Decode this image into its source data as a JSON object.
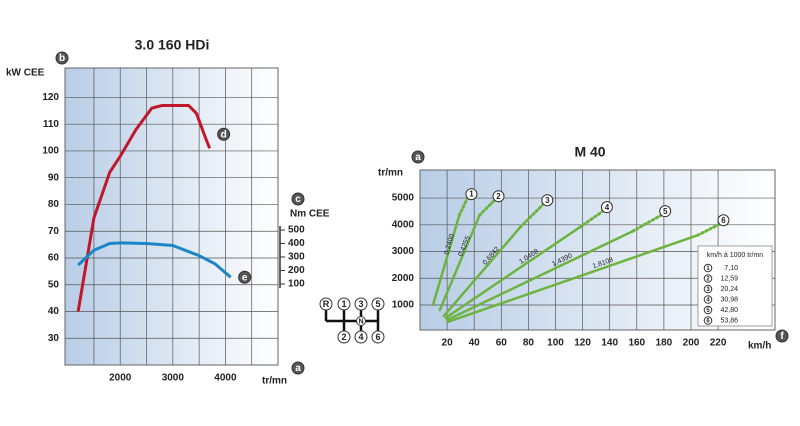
{
  "chart_data": [
    {
      "type": "line",
      "title": "3.0  160 HDi",
      "ylabel": "kW CEE",
      "y2label": "Nm CEE",
      "xlabel": "tr/mn",
      "markers": [
        "b",
        "c",
        "a"
      ],
      "xlim": [
        950,
        5000
      ],
      "xticks": [
        2000,
        3000,
        4000
      ],
      "xgrid": [
        1500,
        2000,
        2500,
        3000,
        3500,
        4000,
        4500
      ],
      "ylim": [
        20,
        131
      ],
      "yticks": [
        30,
        40,
        50,
        60,
        70,
        80,
        90,
        100,
        110,
        120
      ],
      "y2lim": [
        -500,
        1700
      ],
      "y2ticks": [
        100,
        200,
        300,
        400,
        500
      ],
      "series": [
        {
          "name": "d",
          "color": "#c0182a",
          "x": [
            1200,
            1500,
            1800,
            2000,
            2300,
            2600,
            2800,
            3300,
            3450,
            3600,
            3700
          ],
          "values": [
            40,
            75,
            92,
            98,
            108,
            116,
            117,
            117,
            114,
            106,
            101
          ]
        },
        {
          "name": "e",
          "color": "#1a86c8",
          "axis": "y2",
          "x": [
            1200,
            1500,
            1800,
            2000,
            2500,
            3000,
            3500,
            3800,
            4100
          ],
          "values": [
            240,
            350,
            400,
            405,
            400,
            385,
            310,
            250,
            150
          ]
        }
      ]
    },
    {
      "type": "line",
      "title": "M 40",
      "ylabel": "tr/mn",
      "xlabel": "km/h",
      "markers": [
        "a",
        "f"
      ],
      "xlim": [
        0,
        262
      ],
      "xticks": [
        20,
        40,
        60,
        80,
        100,
        120,
        140,
        160,
        180,
        200,
        220
      ],
      "ylim": [
        65,
        6050
      ],
      "yticks": [
        1000,
        2000,
        3000,
        4000,
        5000
      ],
      "series": [
        {
          "name": "1",
          "label": "0,2400",
          "color": "#6db33f",
          "x": [
            9.6,
            29,
            35
          ],
          "values": [
            1000,
            4360,
            5000
          ]
        },
        {
          "name": "2",
          "label": "0,4255",
          "color": "#6db33f",
          "x": [
            14.6,
            44,
            55
          ],
          "values": [
            810,
            4360,
            4920
          ]
        },
        {
          "name": "3",
          "label": "0,6842",
          "color": "#6db33f",
          "x": [
            17.6,
            74,
            91
          ],
          "values": [
            590,
            3910,
            4770
          ]
        },
        {
          "name": "4",
          "label": "1,0468",
          "color": "#6db33f",
          "x": [
            19,
            118,
            135
          ],
          "values": [
            520,
            3910,
            4510
          ]
        },
        {
          "name": "5",
          "label": "1,4390",
          "color": "#6db33f",
          "x": [
            20,
            157,
            178
          ],
          "values": [
            440,
            3760,
            4360
          ]
        },
        {
          "name": "6",
          "label": "1,8108",
          "color": "#6db33f",
          "x": [
            20.7,
            205,
            221
          ],
          "values": [
            370,
            3610,
            4020
          ]
        }
      ],
      "table": {
        "title": "km/h à 1000 tr/mn",
        "rows": [
          [
            "1",
            "7,10"
          ],
          [
            "2",
            "12,59"
          ],
          [
            "3",
            "20,24"
          ],
          [
            "4",
            "30,98"
          ],
          [
            "5",
            "42,80"
          ],
          [
            "6",
            "53,86"
          ]
        ]
      }
    }
  ],
  "shift_pattern": [
    "R",
    "1",
    "3",
    "5",
    "N",
    "2",
    "4",
    "6"
  ]
}
